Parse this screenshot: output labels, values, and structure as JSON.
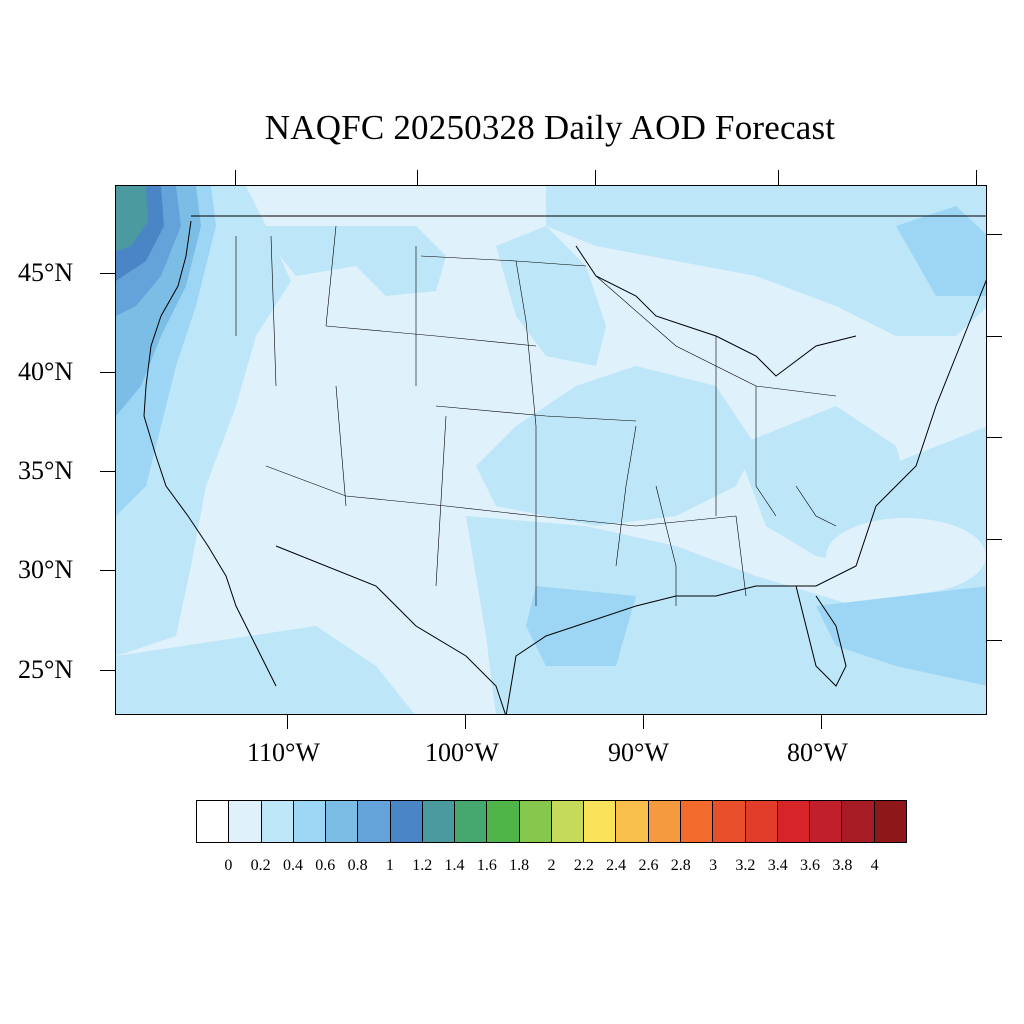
{
  "title": "NAQFC 20250328 Daily AOD Forecast",
  "map": {
    "lat_labels": [
      "45°N",
      "40°N",
      "35°N",
      "30°N",
      "25°N"
    ],
    "lon_labels": [
      "110°W",
      "100°W",
      "90°W",
      "80°W"
    ]
  },
  "colorbar": {
    "colors": [
      "#ffffff",
      "#dff1fb",
      "#bde6f8",
      "#9dd6f4",
      "#7cbde6",
      "#64a3da",
      "#4a86c6",
      "#4a9aa0",
      "#46a86f",
      "#4fb548",
      "#86c84e",
      "#c5d95a",
      "#f8e35a",
      "#f8bf4c",
      "#f59a3f",
      "#f26b2d",
      "#ea4f2c",
      "#e23c2a",
      "#d72429",
      "#c11f2b",
      "#a71b25",
      "#8e1719"
    ],
    "labels": [
      "0",
      "0.2",
      "0.4",
      "0.6",
      "0.8",
      "1",
      "1.2",
      "1.4",
      "1.6",
      "1.8",
      "2",
      "2.2",
      "2.4",
      "2.6",
      "2.8",
      "3",
      "3.2",
      "3.4",
      "3.6",
      "3.8",
      "4"
    ]
  }
}
